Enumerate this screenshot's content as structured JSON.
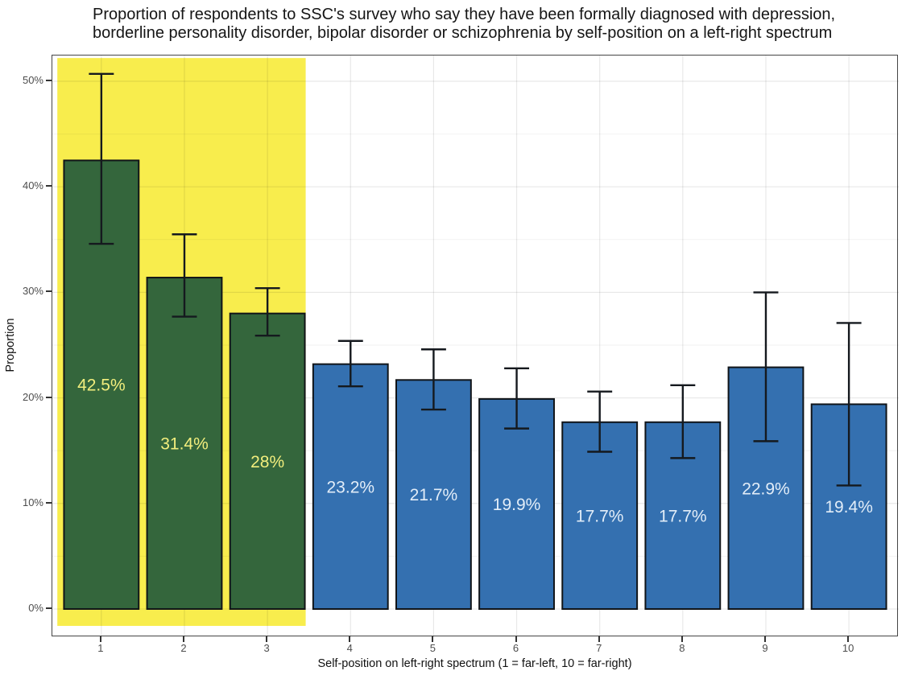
{
  "figure": {
    "title_lines": [
      "Proportion of respondents to SSC's survey who say they have been formally diagnosed with depression,",
      "borderline personality disorder, bipolar disorder or schizophrenia by self-position on a left-right spectrum"
    ]
  },
  "chart_data": {
    "type": "bar",
    "title": "Proportion of respondents to SSC's survey who say they have been formally diagnosed with depression, borderline personality disorder, bipolar disorder or schizophrenia by self-position on a left-right spectrum",
    "xlabel": "Self-position on left-right spectrum (1 = far-left, 10 = far-right)",
    "ylabel": "Proportion",
    "categories": [
      "1",
      "2",
      "3",
      "4",
      "5",
      "6",
      "7",
      "8",
      "9",
      "10"
    ],
    "values": [
      42.5,
      31.4,
      28,
      23.2,
      21.7,
      19.9,
      17.7,
      17.7,
      22.9,
      19.4
    ],
    "bar_labels": [
      "42.5%",
      "31.4%",
      "28%",
      "23.2%",
      "21.7%",
      "19.9%",
      "17.7%",
      "17.7%",
      "22.9%",
      "19.4%"
    ],
    "error_low": [
      34.6,
      27.7,
      25.9,
      21.1,
      18.9,
      17.1,
      14.9,
      14.3,
      15.9,
      11.7
    ],
    "error_high": [
      50.7,
      35.5,
      30.4,
      25.4,
      24.6,
      22.8,
      20.6,
      21.2,
      30.0,
      27.1
    ],
    "groups": [
      "left",
      "left",
      "left",
      "right",
      "right",
      "right",
      "right",
      "right",
      "right",
      "right"
    ],
    "group_fill_colors": {
      "left": "#34663c",
      "right": "#3470b0"
    },
    "group_label_colors": {
      "left": "#f2ee7d",
      "right": "#e2edf8"
    },
    "bar_border_color": "#101418",
    "errorbar_color": "#15191e",
    "highlight": {
      "xmin": 0.47,
      "xmax": 3.46,
      "ymin": -1.6,
      "ymax": 52.2,
      "color": "#f8ed4d"
    },
    "y_ticks": [
      {
        "value": 0,
        "label": "0%"
      },
      {
        "value": 10,
        "label": "10%"
      },
      {
        "value": 20,
        "label": "20%"
      },
      {
        "value": 30,
        "label": "30%"
      },
      {
        "value": 40,
        "label": "40%"
      },
      {
        "value": 50,
        "label": "50%"
      }
    ],
    "y_minor_values": [
      5,
      15,
      25,
      35,
      45
    ],
    "x_major_values": [
      1,
      2,
      3,
      4,
      5,
      6,
      7,
      8,
      9,
      10
    ],
    "ylim": [
      -2.67,
      52.44
    ],
    "xlim": [
      0.41,
      10.6
    ],
    "bar_width": 0.9,
    "errorbar_cap_width": 0.3,
    "grid": true,
    "legend_position": "none",
    "gridline_major_color": "rgba(0,0,0,0.09)",
    "gridline_minor_color": "rgba(0,0,0,0.05)"
  }
}
